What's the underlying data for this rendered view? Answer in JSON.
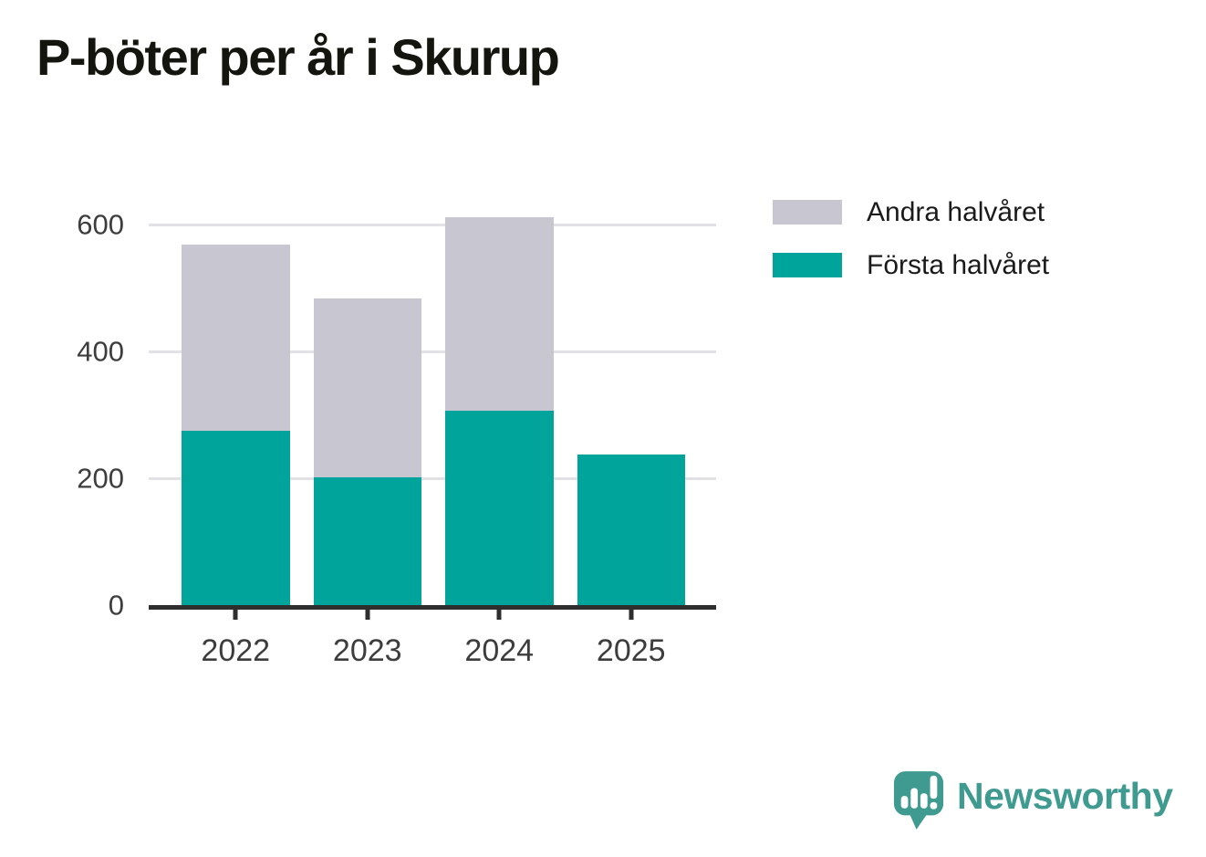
{
  "chart_data": {
    "type": "bar",
    "stacked": true,
    "title": "P-böter per år i Skurup",
    "categories": [
      "2022",
      "2023",
      "2024",
      "2025"
    ],
    "series": [
      {
        "name": "Första halvåret",
        "color": "#00a49b",
        "values": [
          275,
          202,
          307,
          238
        ]
      },
      {
        "name": "Andra halvåret",
        "color": "#c8c6d0",
        "values": [
          293,
          281,
          305,
          0
        ]
      }
    ],
    "stack_totals": [
      568,
      483,
      612,
      238
    ],
    "xlabel": "",
    "ylabel": "",
    "y_ticks": [
      0,
      200,
      400,
      600
    ],
    "ylim": [
      0,
      652
    ],
    "grid": "horizontal",
    "legend_position": "right-of-plot-top",
    "legend": [
      {
        "label": "Andra halvåret",
        "color": "#c8c6d0"
      },
      {
        "label": "Första halvåret",
        "color": "#00a49b"
      }
    ],
    "axis_color": "#2e2e2e",
    "gridline_color": "#e2e1e5",
    "tick_label_color": "#3d3d3d"
  },
  "branding": {
    "logo_text": "Newsworthy",
    "logo_color": "#3f9a90"
  }
}
